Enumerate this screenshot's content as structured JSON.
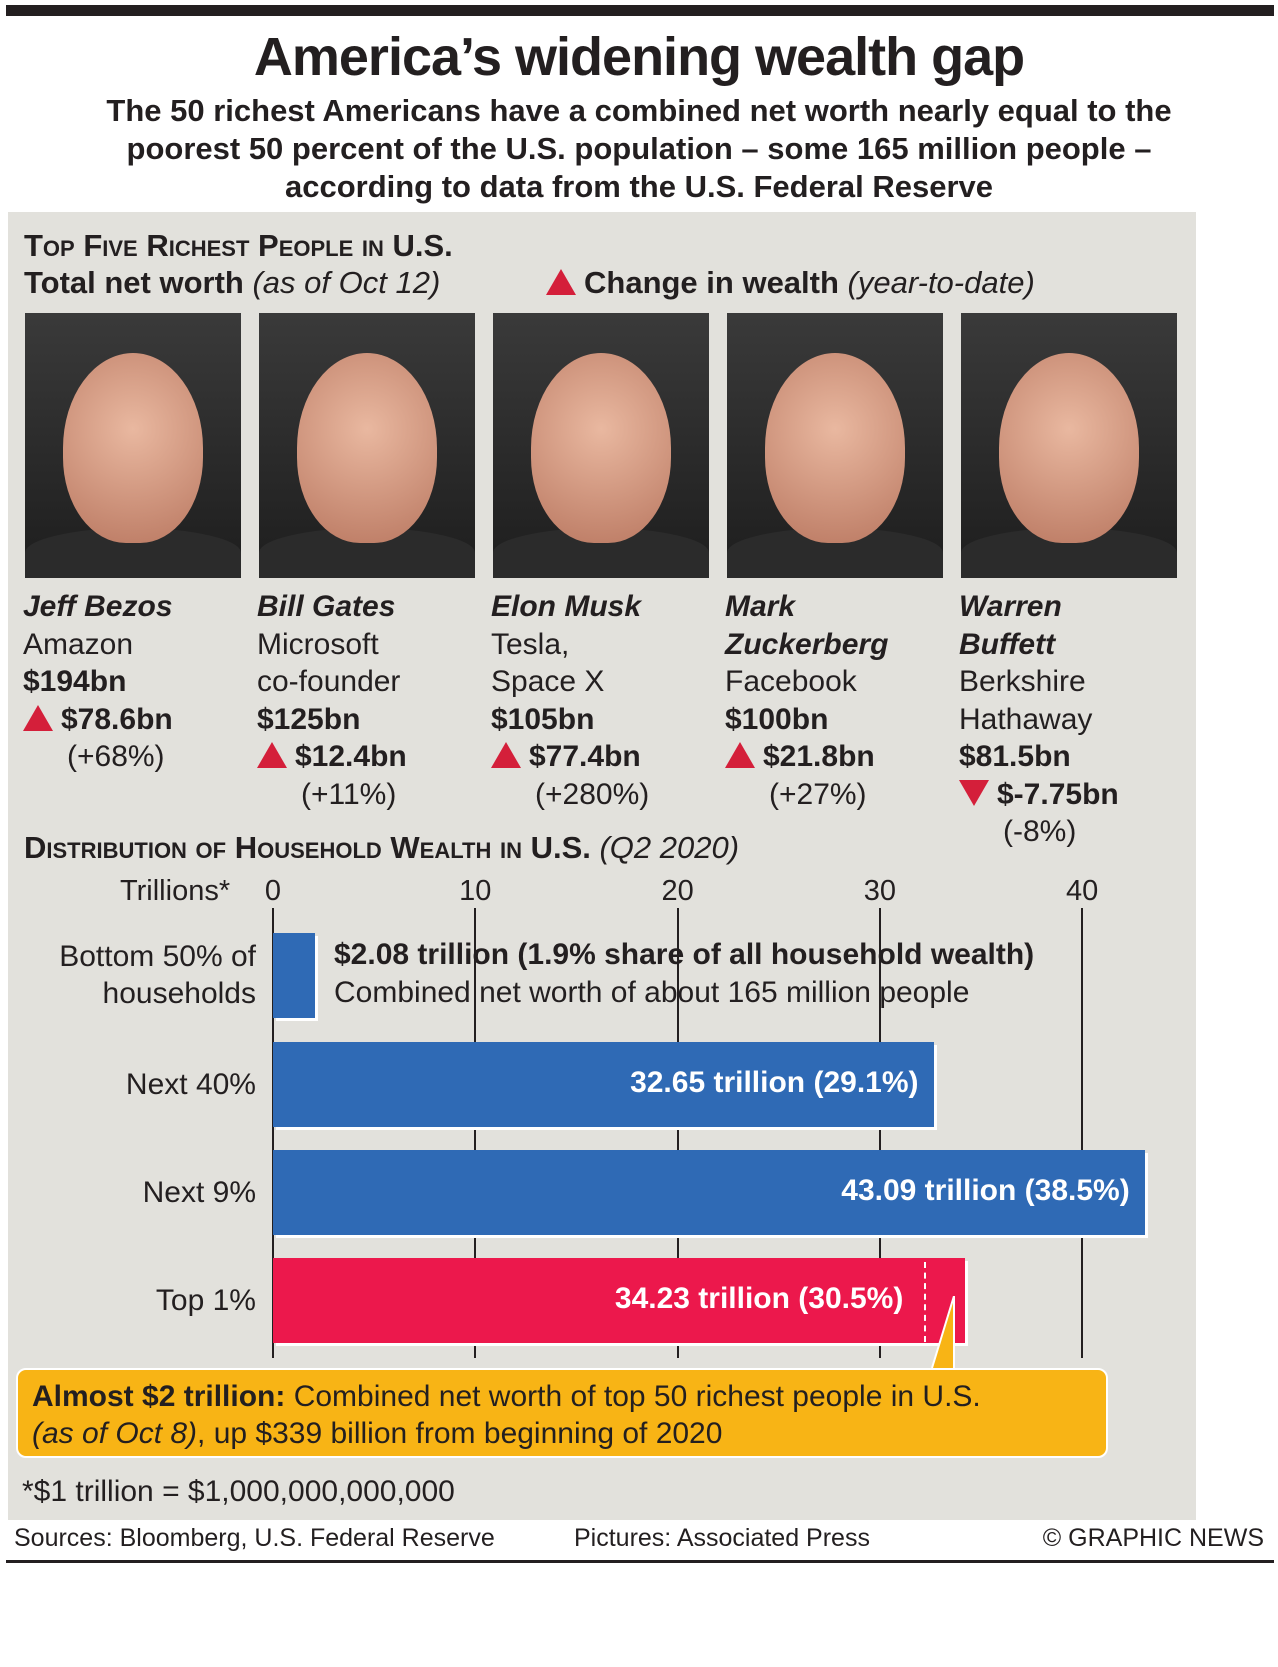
{
  "title": "America’s widening wealth gap",
  "subtitle": [
    "The 50 richest Americans have a combined net worth nearly equal to the",
    "poorest 50 percent of the U.S. population – some 165 million people –",
    "according to data from the U.S. Federal Reserve"
  ],
  "top5": {
    "heading": "Top Five Richest People in U.S.",
    "net_worth_label": "Total net worth",
    "net_worth_note": "(as of Oct 12)",
    "change_label": "Change in wealth",
    "change_note": "(year-to-date)",
    "people": [
      {
        "name": [
          "Jeff Bezos"
        ],
        "company": [
          "Amazon"
        ],
        "worth": "$194bn",
        "change": "$78.6bn",
        "pct": "(+68%)",
        "dir": "up"
      },
      {
        "name": [
          "Bill Gates"
        ],
        "company": [
          "Microsoft",
          "co-founder"
        ],
        "worth": "$125bn",
        "change": "$12.4bn",
        "pct": "(+11%)",
        "dir": "up"
      },
      {
        "name": [
          "Elon Musk"
        ],
        "company": [
          "Tesla,",
          "Space X"
        ],
        "worth": "$105bn",
        "change": "$77.4bn",
        "pct": "(+280%)",
        "dir": "up"
      },
      {
        "name": [
          "Mark",
          "Zuckerberg"
        ],
        "company": [
          "Facebook"
        ],
        "worth": "$100bn",
        "change": "$21.8bn",
        "pct": "(+27%)",
        "dir": "up"
      },
      {
        "name": [
          "Warren",
          "Buffett"
        ],
        "company": [
          "Berkshire",
          "Hathaway"
        ],
        "worth": "$81.5bn",
        "change": "$-7.75bn",
        "pct": "(-8%)",
        "dir": "down"
      }
    ]
  },
  "chart_data": {
    "type": "bar",
    "orientation": "horizontal",
    "title": "Distribution of Household Wealth in U.S.",
    "title_note": "(Q2 2020)",
    "xlabel": "Trillions*",
    "xlim": [
      0,
      43
    ],
    "xticks": [
      0,
      10,
      20,
      30,
      40
    ],
    "categories": [
      [
        "Bottom 50% of",
        "households"
      ],
      [
        "Next 40%"
      ],
      [
        "Next 9%"
      ],
      [
        "Top 1%"
      ]
    ],
    "values": [
      2.08,
      32.65,
      43.09,
      34.23
    ],
    "shares": [
      1.9,
      29.1,
      38.5,
      30.5
    ],
    "data_labels": [
      "$2.08 trillion (1.9% share of all household wealth)",
      "32.65 trillion (29.1%)",
      "43.09 trillion (38.5%)",
      "34.23 trillion (30.5%)"
    ],
    "bottom_note": "Combined net worth of about 165 million people",
    "colors": [
      "#2f6ab5",
      "#2f6ab5",
      "#2f6ab5",
      "#ec184c"
    ],
    "top50_marker_value": 32.2
  },
  "callout": {
    "bold": "Almost $2 trillion:",
    "text": " Combined net worth of top 50 richest people in U.S.",
    "italic": "(as of Oct 8)",
    "text2": ", up $339 billion from beginning of 2020"
  },
  "footnote": "*$1 trillion = $1,000,000,000,000",
  "footer": {
    "sources": "Sources: Bloomberg, U.S. Federal Reserve",
    "pictures": "Pictures: Associated Press",
    "credit": "© GRAPHIC NEWS"
  }
}
